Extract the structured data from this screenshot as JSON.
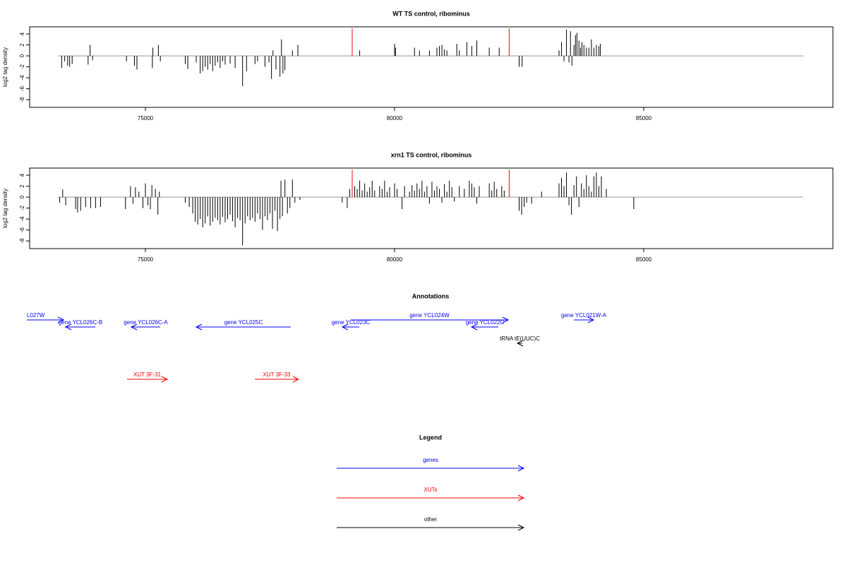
{
  "chart_data": [
    {
      "type": "bar",
      "title": "WT TS control, ribominus",
      "y_label": "log2 tag density",
      "xlim": [
        72677,
        88796
      ],
      "ylim": [
        -9.4,
        5.3
      ],
      "xticks": [
        75000,
        80000,
        85000
      ],
      "yticks": [
        4,
        2,
        0,
        -2,
        -4,
        -6,
        -8
      ],
      "series": [
        {
          "color": "#000000",
          "x": [
            73320,
            73380,
            73440,
            73480,
            73530,
            73850,
            73890,
            73940,
            74620,
            74780,
            74830,
            75140,
            75150,
            75260,
            75300,
            75800,
            75850,
            76020,
            76100,
            76150,
            76200,
            76250,
            76300,
            76350,
            76400,
            76450,
            76500,
            76550,
            76600,
            76700,
            76800,
            76950,
            77030,
            77200,
            77250,
            77400,
            77480,
            77530,
            77560,
            77620,
            77700,
            77730,
            77760,
            77800,
            77950,
            78060,
            79300,
            80000,
            80020,
            80400,
            80500,
            80700,
            80850,
            80900,
            80950,
            81000,
            81050,
            81250,
            81300,
            81450,
            81550,
            81650,
            81900,
            82100,
            82500,
            82560,
            83300,
            83350,
            83400,
            83450,
            83500,
            83530,
            83560,
            83600,
            83630,
            83660,
            83700,
            83730,
            83760,
            83800,
            83850,
            83900,
            83950,
            84000,
            84050,
            84100,
            84130
          ],
          "values": [
            -2.2,
            -1,
            -1.8,
            -2,
            -1.5,
            -1.6,
            2,
            -0.8,
            -1,
            -1.8,
            -2.5,
            -2.2,
            1.5,
            2,
            -1,
            -1.5,
            -2.4,
            -1.2,
            -3.2,
            -2.8,
            -2,
            -2.5,
            -1.5,
            -2.8,
            -1.8,
            -1.2,
            -2.2,
            -1,
            -1.6,
            -1.4,
            -2.2,
            -5.5,
            -2.8,
            -1.5,
            -1,
            -2,
            -1.2,
            -4.2,
            1,
            -2.5,
            -3.8,
            3,
            -3.2,
            -2.6,
            1,
            2,
            1,
            2.2,
            1.5,
            1.5,
            1,
            1,
            1.5,
            1.8,
            2,
            1.2,
            1,
            2.2,
            1,
            2.5,
            1.8,
            2.8,
            1.5,
            1.5,
            -2,
            -2,
            1,
            2.5,
            -1,
            4.8,
            -1.2,
            4.5,
            -1.8,
            2,
            3.8,
            4.2,
            2.8,
            1.5,
            2.5,
            2,
            1.5,
            1.5,
            3,
            1.5,
            2,
            1.8,
            2.2
          ]
        },
        {
          "color": "#ff0000",
          "x": [
            79150,
            82300
          ],
          "values": [
            5,
            5
          ]
        }
      ]
    },
    {
      "type": "bar",
      "title": "xrn1 TS control, ribominus",
      "y_label": "log2 tag density",
      "xlim": [
        72677,
        88796
      ],
      "ylim": [
        -9.4,
        5.3
      ],
      "xticks": [
        75000,
        80000,
        85000
      ],
      "yticks": [
        4,
        2,
        0,
        -2,
        -4,
        -6,
        -8
      ],
      "series": [
        {
          "color": "#000000",
          "x": [
            73280,
            73340,
            73400,
            73600,
            73640,
            73700,
            73800,
            73900,
            74000,
            74100,
            74600,
            74700,
            74750,
            74800,
            74870,
            74950,
            75000,
            75050,
            75100,
            75130,
            75200,
            75250,
            75280,
            75800,
            75880,
            75950,
            76000,
            76050,
            76100,
            76150,
            76200,
            76250,
            76300,
            76350,
            76400,
            76450,
            76500,
            76550,
            76600,
            76650,
            76700,
            76750,
            76800,
            76850,
            76900,
            76950,
            77000,
            77050,
            77100,
            77150,
            77200,
            77250,
            77300,
            77350,
            77400,
            77450,
            77500,
            77550,
            77600,
            77650,
            77700,
            77720,
            77750,
            77800,
            77850,
            77900,
            77950,
            78000,
            78100,
            78950,
            79050,
            79100,
            79200,
            79250,
            79300,
            79350,
            79400,
            79450,
            79500,
            79550,
            79600,
            79700,
            79750,
            79800,
            79850,
            79900,
            80000,
            80050,
            80150,
            80200,
            80300,
            80350,
            80400,
            80450,
            80500,
            80550,
            80600,
            80650,
            80700,
            80750,
            80800,
            80850,
            80900,
            80950,
            81000,
            81050,
            81100,
            81150,
            81200,
            81300,
            81400,
            81500,
            81550,
            81600,
            81650,
            81700,
            81900,
            81950,
            82000,
            82050,
            82150,
            82200,
            82500,
            82550,
            82600,
            82650,
            82750,
            82950,
            83300,
            83350,
            83400,
            83450,
            83500,
            83550,
            83600,
            83650,
            83700,
            83750,
            83800,
            83850,
            83900,
            83950,
            84000,
            84050,
            84100,
            84150,
            84250,
            84800
          ],
          "values": [
            -1,
            1.4,
            -1.5,
            -2.2,
            -2.8,
            -2.5,
            -1.8,
            -2,
            -2,
            -1.8,
            -2.2,
            2,
            -1.2,
            1.8,
            1,
            -2,
            2.5,
            -1.5,
            -2.2,
            2.2,
            1.5,
            -3.2,
            1,
            -1,
            -1.8,
            -3,
            -4.5,
            -5,
            -4,
            -5.5,
            -4.8,
            -3.5,
            -5.2,
            -4.5,
            -3.8,
            -4.2,
            -5,
            -3.6,
            -4.6,
            -4,
            -3.2,
            -4.4,
            -5.5,
            -3.8,
            -4.2,
            -8.8,
            -4.8,
            -3.5,
            -4.2,
            -3.8,
            -4.5,
            -3,
            -4,
            -6,
            -3.5,
            -4.2,
            -3,
            -5.8,
            -2.5,
            -6.2,
            -4,
            3,
            -3.5,
            3.2,
            -3,
            -2,
            3.2,
            -1,
            -0.5,
            -1,
            -2,
            1.5,
            2,
            1.5,
            3,
            1.2,
            2.5,
            1,
            1.8,
            3,
            1.2,
            2,
            1.5,
            3,
            1,
            1.8,
            2.5,
            1.5,
            -2.2,
            2,
            1,
            2.2,
            1.2,
            2.5,
            1.5,
            3,
            1,
            2,
            -1.2,
            2.8,
            1.2,
            2,
            1.5,
            -1,
            2.4,
            1,
            3,
            1.8,
            -0.8,
            2,
            1.5,
            3,
            2.5,
            1.8,
            -1.2,
            2,
            2.5,
            1.2,
            2.8,
            1.5,
            2,
            1.2,
            -2.5,
            -3.2,
            -1.8,
            -1,
            -1.2,
            1,
            2.5,
            3.5,
            2,
            4.5,
            -1.5,
            -3.2,
            2.2,
            3.8,
            -1.8,
            2.5,
            1.5,
            4,
            2,
            1,
            3.8,
            4.5,
            2,
            3.8,
            1.5,
            -2.2
          ]
        },
        {
          "color": "#ff0000",
          "x": [
            79150,
            82300
          ],
          "values": [
            5,
            5
          ]
        }
      ]
    }
  ],
  "annotations": {
    "title": "Annotations",
    "items": [
      {
        "label": "L027W",
        "color": "#0000ff",
        "start": 72620,
        "end": 73357
      },
      {
        "label": "gene YCL026C-B",
        "color": "#0000ff",
        "start": 73994,
        "end": 73399
      },
      {
        "label": "gene YCL026C-A",
        "color": "#0000ff",
        "start": 75297,
        "end": 74717
      },
      {
        "label": "gene YCL025C",
        "color": "#0000ff",
        "start": 77918,
        "end": 76020
      },
      {
        "label": "gene YCL023C",
        "color": "#0000ff",
        "start": 79292,
        "end": 78952
      },
      {
        "label": "gene YCL024W",
        "color": "#0000ff",
        "start": 79122,
        "end": 82280
      },
      {
        "label": "gene YCL022C",
        "color": "#0000ff",
        "start": 82082,
        "end": 81544
      },
      {
        "label": "gene YCL021W-A",
        "color": "#0000ff",
        "start": 83598,
        "end": 83994
      },
      {
        "label": "tRNA tE(UUC)C",
        "color": "#000000",
        "start": 82564,
        "end": 82465
      },
      {
        "label": "XUT 3F-31",
        "color": "#ff0000",
        "start": 74632,
        "end": 75439
      },
      {
        "label": "XUT 3F-33",
        "color": "#ff0000",
        "start": 77195,
        "end": 78074
      }
    ]
  },
  "legend": {
    "title": "Legend",
    "items": [
      {
        "label": "genes",
        "color": "#0000ff"
      },
      {
        "label": "XUTs",
        "color": "#ff0000"
      },
      {
        "label": "other",
        "color": "#000000"
      }
    ]
  }
}
